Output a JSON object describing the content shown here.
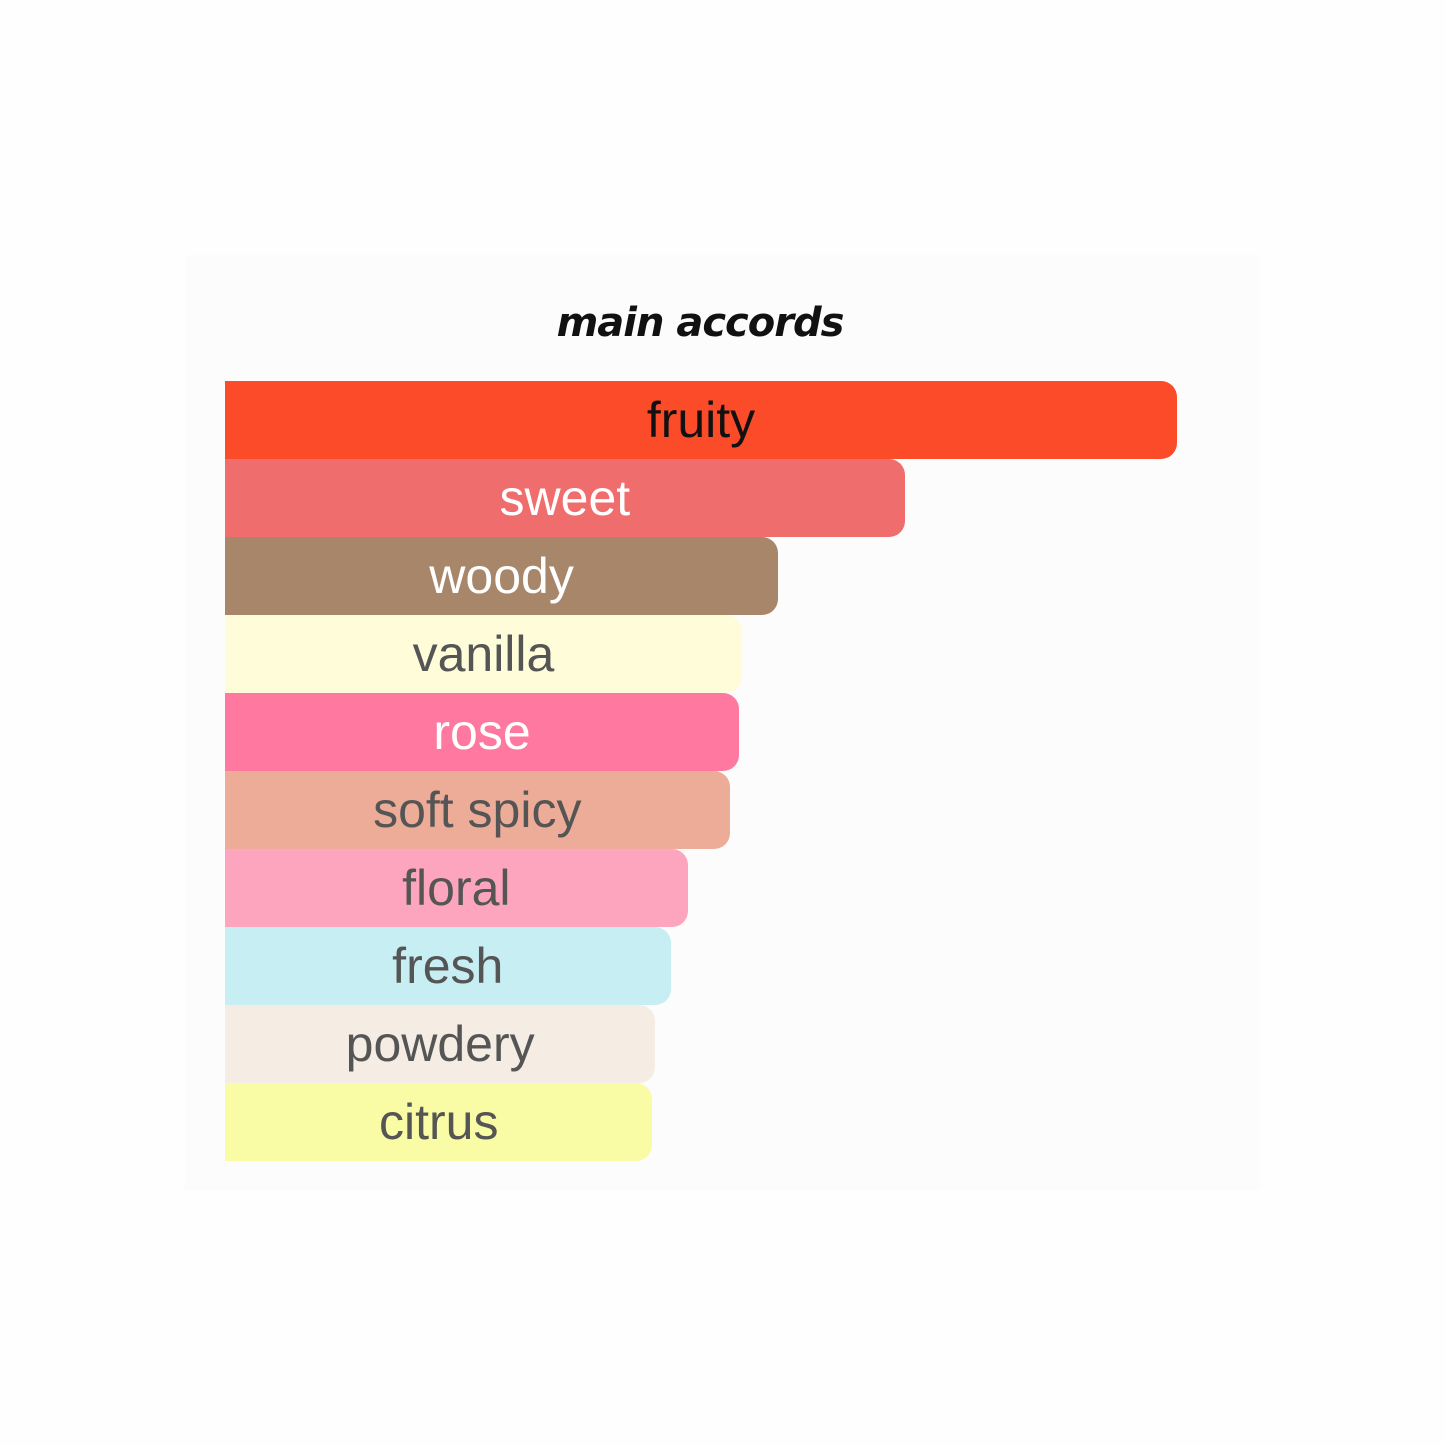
{
  "chart_data": {
    "type": "bar",
    "orientation": "horizontal",
    "title": "main accords",
    "xlim": [
      0,
      100
    ],
    "grid": false,
    "categories": [
      "fruity",
      "sweet",
      "woody",
      "vanilla",
      "rose",
      "soft spicy",
      "floral",
      "fresh",
      "powdery",
      "citrus"
    ],
    "values": [
      100,
      71.4,
      58.1,
      54.3,
      54.0,
      53.0,
      48.6,
      46.8,
      45.2,
      44.9
    ],
    "colors": [
      "#FC4B29",
      "#F06D6D",
      "#A8866A",
      "#FFFCD9",
      "#FE78A0",
      "#EDAC97",
      "#FDA5BF",
      "#C7EEF2",
      "#F5ECE3",
      "#F9FCA4"
    ],
    "label_colors": [
      "#111111",
      "#FFFFFF",
      "#FFFFFF",
      "#555555",
      "#FFFFFF",
      "#555555",
      "#555555",
      "#555555",
      "#555555",
      "#555555"
    ]
  }
}
